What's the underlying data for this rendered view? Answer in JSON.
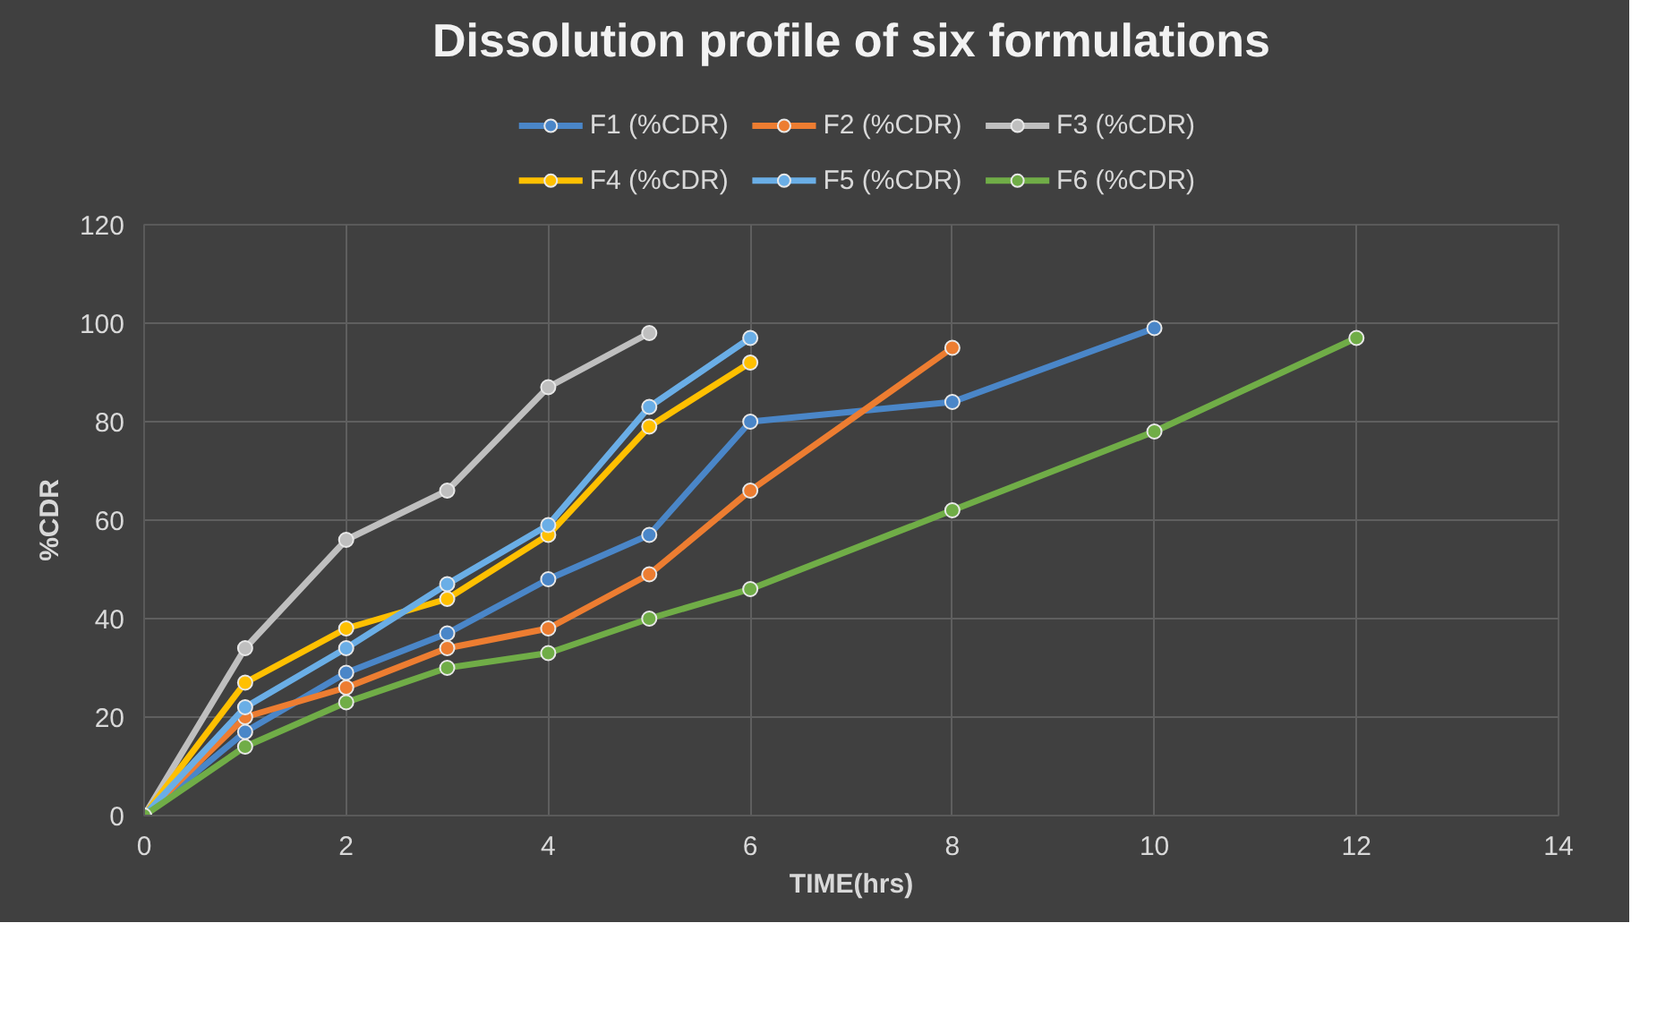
{
  "chart_data": {
    "type": "line",
    "title": "Dissolution profile of six formulations",
    "xlabel": "TIME(hrs)",
    "ylabel": "%CDR",
    "xlim": [
      0,
      14
    ],
    "xticks": [
      0,
      2,
      4,
      6,
      8,
      10,
      12,
      14
    ],
    "ylim": [
      0,
      120
    ],
    "yticks": [
      0,
      20,
      40,
      60,
      80,
      100,
      120
    ],
    "grid": true,
    "legend": "top",
    "marker": "circle",
    "line_style": "solid",
    "series": [
      {
        "name": "F1 (%CDR)",
        "color": "#4a86c8",
        "x": [
          0,
          1,
          2,
          3,
          4,
          5,
          6,
          8,
          10
        ],
        "values": [
          0,
          17,
          29,
          37,
          48,
          57,
          80,
          84,
          99
        ]
      },
      {
        "name": "F2 (%CDR)",
        "color": "#ed7d31",
        "x": [
          0,
          1,
          2,
          3,
          4,
          5,
          6,
          8
        ],
        "values": [
          0,
          20,
          26,
          34,
          38,
          49,
          66,
          95
        ]
      },
      {
        "name": "F3 (%CDR)",
        "color": "#bfbfbf",
        "x": [
          0,
          1,
          2,
          3,
          4,
          5
        ],
        "values": [
          0,
          34,
          56,
          66,
          87,
          98
        ]
      },
      {
        "name": "F4 (%CDR)",
        "color": "#ffc000",
        "x": [
          0,
          1,
          2,
          3,
          4,
          5,
          6
        ],
        "values": [
          0,
          27,
          38,
          44,
          57,
          79,
          92
        ]
      },
      {
        "name": "F5 (%CDR)",
        "color": "#6aaee6",
        "x": [
          0,
          1,
          2,
          3,
          4,
          5,
          6
        ],
        "values": [
          0,
          22,
          34,
          47,
          59,
          83,
          97
        ]
      },
      {
        "name": "F6 (%CDR)",
        "color": "#70ad47",
        "x": [
          0,
          1,
          2,
          3,
          4,
          5,
          6,
          8,
          10,
          12
        ],
        "values": [
          0,
          14,
          23,
          30,
          33,
          40,
          46,
          62,
          78,
          97
        ]
      }
    ]
  }
}
